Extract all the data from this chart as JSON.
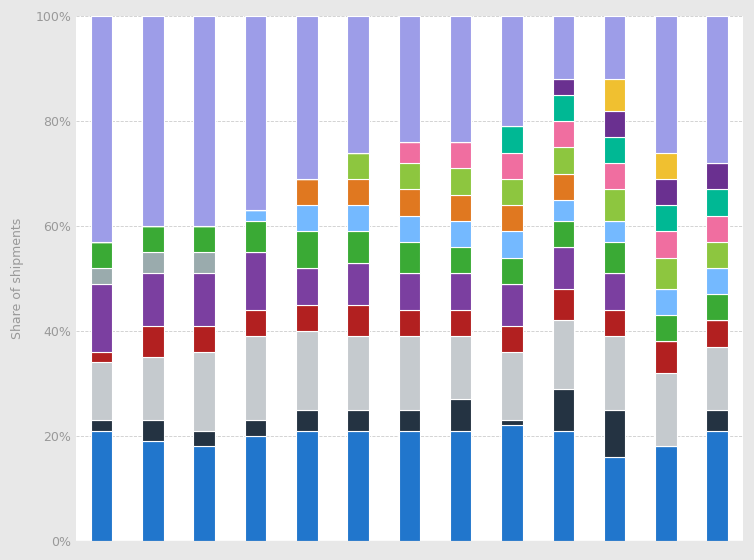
{
  "n_bars": 13,
  "ylabel": "Share of shipments",
  "yticks": [
    0,
    20,
    40,
    60,
    80,
    100
  ],
  "ytick_labels": [
    "0%",
    "20%",
    "40%",
    "60%",
    "80%",
    "100%"
  ],
  "background_color": "#e8e8e8",
  "plot_background": "#ffffff",
  "bar_width": 0.42,
  "segments": [
    {
      "color": "#2176cc",
      "values": [
        21,
        19,
        18,
        20,
        21,
        21,
        21,
        21,
        22,
        21,
        16,
        18,
        21
      ]
    },
    {
      "color": "#243342",
      "values": [
        2,
        4,
        3,
        3,
        4,
        4,
        4,
        6,
        1,
        8,
        9,
        0,
        4
      ]
    },
    {
      "color": "#c5cace",
      "values": [
        11,
        12,
        15,
        16,
        15,
        14,
        14,
        12,
        13,
        13,
        14,
        14,
        12
      ]
    },
    {
      "color": "#b22020",
      "values": [
        2,
        6,
        5,
        5,
        5,
        6,
        5,
        5,
        5,
        6,
        5,
        6,
        5
      ]
    },
    {
      "color": "#7b3fa0",
      "values": [
        13,
        10,
        10,
        11,
        7,
        8,
        7,
        7,
        8,
        8,
        7,
        0,
        0
      ]
    },
    {
      "color": "#9aabad",
      "values": [
        3,
        4,
        4,
        0,
        0,
        0,
        0,
        0,
        0,
        0,
        0,
        0,
        0
      ]
    },
    {
      "color": "#3aaa35",
      "values": [
        5,
        5,
        5,
        6,
        7,
        6,
        6,
        5,
        5,
        5,
        6,
        5,
        5
      ]
    },
    {
      "color": "#74b9ff",
      "values": [
        0,
        0,
        0,
        2,
        5,
        5,
        5,
        5,
        5,
        4,
        4,
        5,
        5
      ]
    },
    {
      "color": "#e07820",
      "values": [
        0,
        0,
        0,
        0,
        5,
        5,
        5,
        5,
        5,
        5,
        0,
        0,
        0
      ]
    },
    {
      "color": "#8dc63f",
      "values": [
        0,
        0,
        0,
        0,
        0,
        5,
        5,
        5,
        5,
        5,
        6,
        6,
        5
      ]
    },
    {
      "color": "#f06ea0",
      "values": [
        0,
        0,
        0,
        0,
        0,
        0,
        4,
        5,
        5,
        5,
        5,
        5,
        5
      ]
    },
    {
      "color": "#00b894",
      "values": [
        0,
        0,
        0,
        0,
        0,
        0,
        0,
        0,
        5,
        5,
        5,
        5,
        5
      ]
    },
    {
      "color": "#6a3090",
      "values": [
        0,
        0,
        0,
        0,
        0,
        0,
        0,
        0,
        0,
        3,
        5,
        5,
        5
      ]
    },
    {
      "color": "#f0c030",
      "values": [
        0,
        0,
        0,
        0,
        0,
        0,
        0,
        0,
        0,
        0,
        6,
        5,
        0
      ]
    },
    {
      "color": "#9d9de8",
      "values": [
        43,
        40,
        40,
        37,
        31,
        26,
        24,
        24,
        21,
        12,
        12,
        26,
        28
      ]
    }
  ]
}
